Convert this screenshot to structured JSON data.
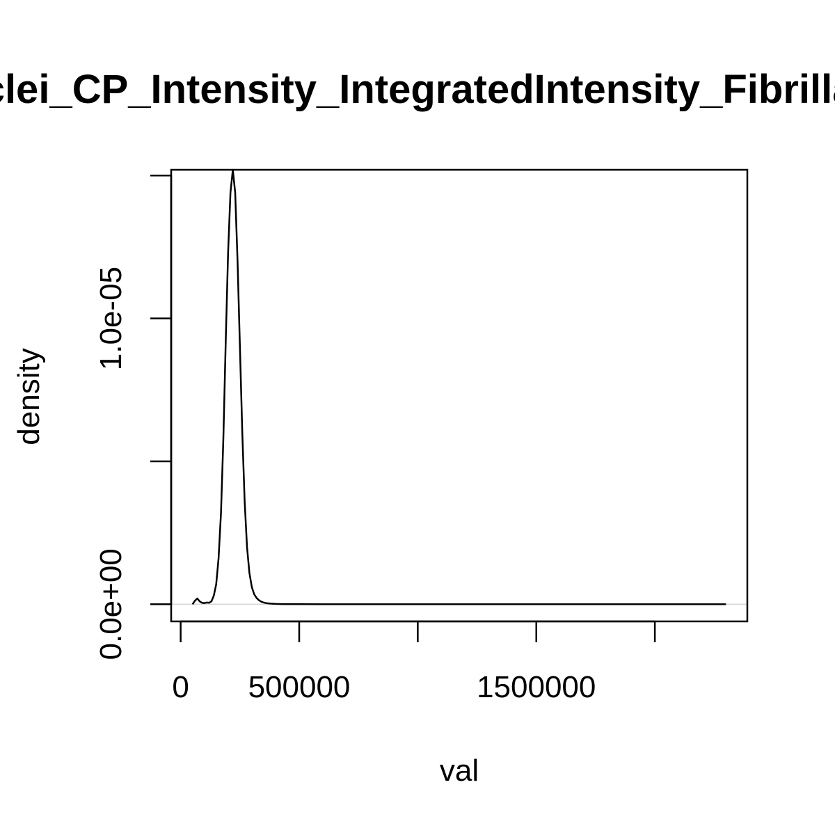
{
  "chart_data": {
    "type": "line",
    "title": "Nuclei_CP_Intensity_IntegratedIntensity_Fibrillarin",
    "xlabel": "val",
    "ylabel": "density",
    "xlim": [
      -40000,
      2390000
    ],
    "ylim": [
      -6e-07,
      1.52e-05
    ],
    "x_ticks": [
      0,
      500000,
      1000000,
      1500000,
      2000000
    ],
    "x_tick_labels": [
      "0",
      "500000",
      "",
      "1500000",
      ""
    ],
    "y_ticks": [
      0,
      5e-06,
      1e-05,
      1.5e-05
    ],
    "y_tick_labels": [
      "0.0e+00",
      "",
      "1.0e-05",
      ""
    ],
    "baseline": 0,
    "series": [
      {
        "x": [
          50000,
          60000,
          70000,
          80000,
          90000,
          100000,
          110000,
          120000,
          130000,
          140000,
          150000,
          160000,
          170000,
          180000,
          190000,
          200000,
          210000,
          220000,
          230000,
          240000,
          250000,
          260000,
          270000,
          280000,
          290000,
          300000,
          310000,
          320000,
          330000,
          340000,
          350000,
          360000,
          370000,
          380000,
          400000,
          420000,
          450000,
          500000,
          600000,
          800000,
          1000000,
          1200000,
          1400000,
          1600000,
          1800000,
          2000000,
          2200000,
          2300000
        ],
        "y": [
          0,
          1.2e-07,
          2e-07,
          1e-07,
          5e-08,
          4e-08,
          6e-08,
          5e-08,
          1e-07,
          3e-07,
          7e-07,
          1.6e-06,
          3.2e-06,
          5.8e-06,
          9.2e-06,
          1.23e-05,
          1.44e-05,
          1.52e-05,
          1.44e-05,
          1.2e-05,
          9e-06,
          6e-06,
          3.6e-06,
          2e-06,
          1.1e-06,
          6e-07,
          3.5e-07,
          2.2e-07,
          1.4e-07,
          9e-08,
          6e-08,
          4e-08,
          3e-08,
          2e-08,
          1e-08,
          5e-09,
          2e-09,
          1e-09,
          0,
          0,
          0,
          0,
          0,
          0,
          0,
          0,
          0,
          0
        ]
      }
    ],
    "colors": {
      "line": "#000000",
      "baseline": "#d3d3d3",
      "box": "#000000"
    }
  }
}
